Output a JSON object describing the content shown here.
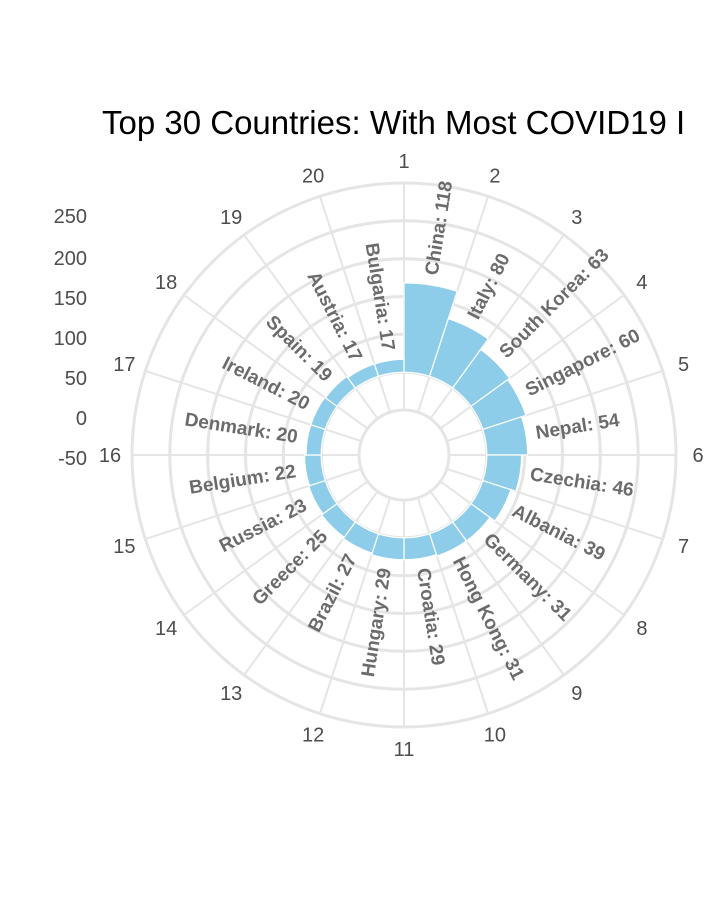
{
  "chart_data": {
    "type": "bar",
    "coordinate_system": "polar",
    "title": "Top 30 Countries: With Most COVID19 I",
    "color": "#8ecde9",
    "grid": true,
    "ylim": [
      -50,
      250
    ],
    "y_ticks": [
      "250",
      "200",
      "150",
      "100",
      "50",
      "0",
      "-50"
    ],
    "y_tick_values": [
      250,
      200,
      150,
      100,
      50,
      0,
      -50
    ],
    "angle_ticks": [
      "1",
      "2",
      "3",
      "4",
      "5",
      "6",
      "7",
      "8",
      "9",
      "10",
      "11",
      "12",
      "13",
      "14",
      "15",
      "16",
      "17",
      "18",
      "19",
      "20"
    ],
    "x": [
      1,
      2,
      3,
      4,
      5,
      6,
      7,
      8,
      9,
      10,
      11,
      12,
      13,
      14,
      15,
      16,
      17,
      18,
      19,
      20
    ],
    "categories": [
      "China",
      "Italy",
      "South Korea",
      "Singapore",
      "Nepal",
      "Czechia",
      "Albania",
      "Germany",
      "Hong Kong",
      "Croatia",
      "Hungary",
      "Brazil",
      "Greece",
      "Russia",
      "Belgium",
      "Denmark",
      "Ireland",
      "Spain",
      "Austria",
      "Bulgaria"
    ],
    "values": [
      118,
      80,
      63,
      60,
      54,
      46,
      39,
      31,
      31,
      29,
      29,
      27,
      25,
      23,
      22,
      20,
      20,
      19,
      17,
      17
    ],
    "labels": [
      "China: 118",
      "Italy: 80",
      "South Korea: 63",
      "Singapore: 60",
      "Nepal: 54",
      "Czechia: 46",
      "Albania: 39",
      "Germany: 31",
      "Hong Kong: 31",
      "Croatia: 29",
      "Hungary: 29",
      "Brazil: 27",
      "Greece: 25",
      "Russia: 23",
      "Belgium: 22",
      "Denmark: 20",
      "Ireland: 20",
      "Spain: 19",
      "Austria: 17",
      "Bulgaria: 17"
    ]
  }
}
